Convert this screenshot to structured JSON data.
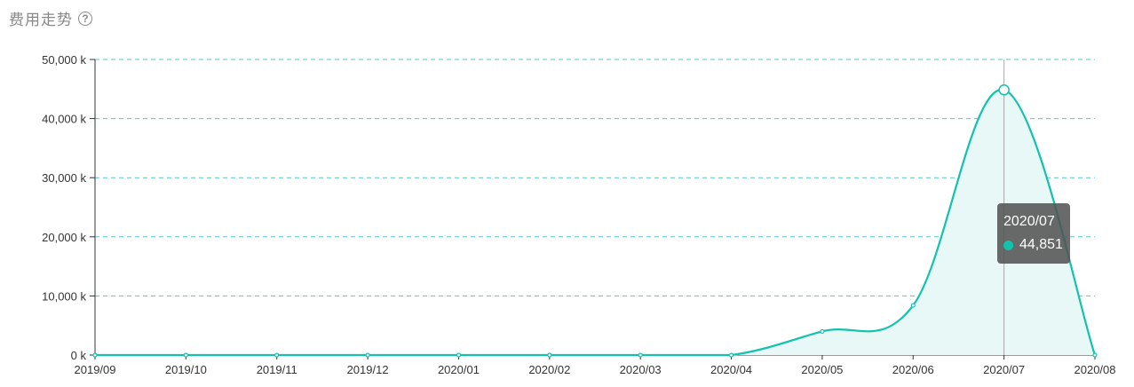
{
  "header": {
    "title": "费用走势",
    "help_icon": "question-circle-icon"
  },
  "colors": {
    "line": "#13c2ad",
    "area": "#e8f8f6",
    "grid": "#52c7cf",
    "axis": "#333333",
    "crosshair": "#aaaaaa"
  },
  "chart_data": {
    "type": "area",
    "title": "费用走势",
    "x": [
      "2019/09",
      "2019/10",
      "2019/11",
      "2019/12",
      "2020/01",
      "2020/02",
      "2020/03",
      "2020/04",
      "2020/05",
      "2020/06",
      "2020/07",
      "2020/08"
    ],
    "series": [
      {
        "values": [
          0,
          0,
          0,
          0,
          0,
          0,
          0,
          0,
          4000,
          8400,
          44851,
          0
        ]
      }
    ],
    "yticks": [
      "0 k",
      "10,000 k",
      "20,000 k",
      "30,000 k",
      "40,000 k",
      "50,000 k"
    ],
    "ylim": [
      0,
      50000
    ],
    "grid": true,
    "smooth": true,
    "tooltip": {
      "label": "2020/07",
      "value": "44,851"
    }
  }
}
